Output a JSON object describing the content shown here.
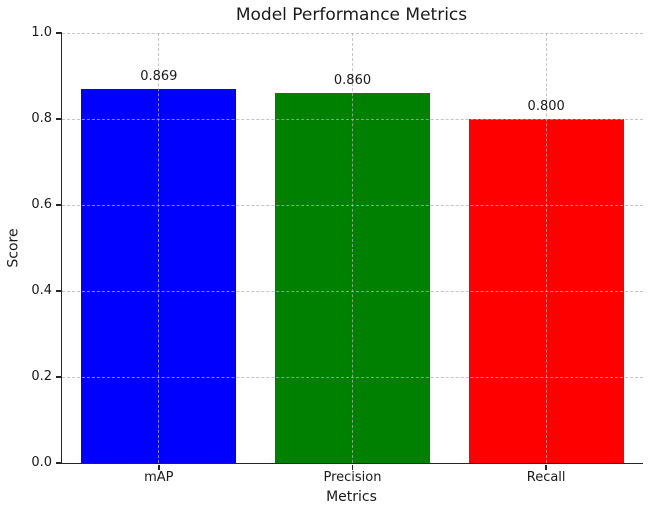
{
  "figure": {
    "background": "#ffffff"
  },
  "chart_data": {
    "type": "bar",
    "title": "Model Performance Metrics",
    "xlabel": "Metrics",
    "ylabel": "Score",
    "categories": [
      "mAP",
      "Precision",
      "Recall"
    ],
    "values": [
      0.869,
      0.86,
      0.8
    ],
    "value_labels": [
      "0.869",
      "0.860",
      "0.800"
    ],
    "colors": [
      "#0000ff",
      "#008000",
      "#ff0000"
    ],
    "ylim": [
      0.0,
      1.0
    ],
    "yticks": [
      0.0,
      0.2,
      0.4,
      0.6,
      0.8,
      1.0
    ],
    "ytick_labels": [
      "0.0",
      "0.2",
      "0.4",
      "0.6",
      "0.8",
      "1.0"
    ],
    "bar_width_fraction": 0.8,
    "grid": true,
    "grid_style": "dashed",
    "grid_color": "#b0b0b0",
    "legend": "none",
    "spine_color": "#262626",
    "text_color": "#1a1a1a"
  }
}
